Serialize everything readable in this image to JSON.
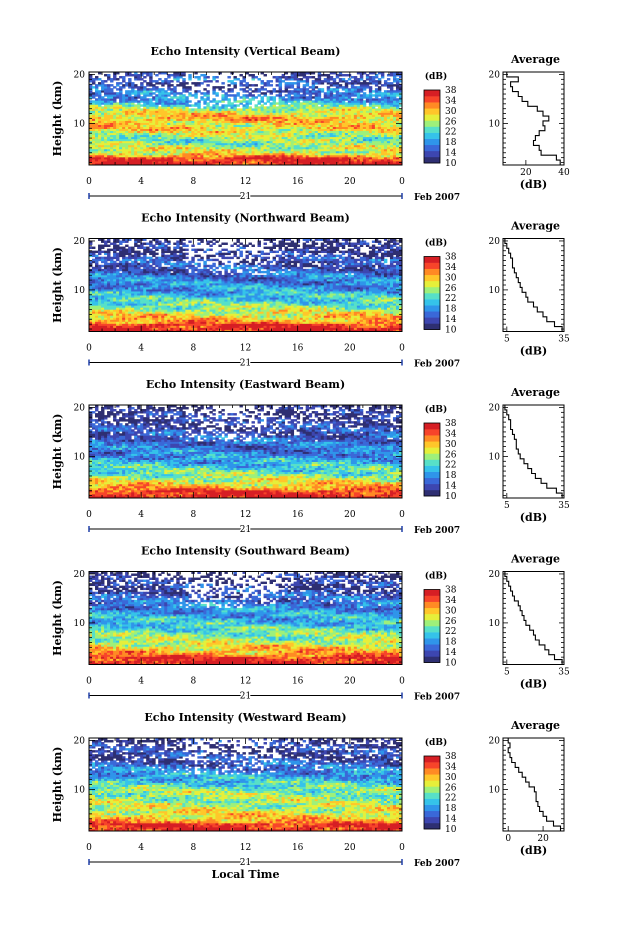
{
  "chart_data": [
    {
      "type": "heatmap",
      "title": "Echo Intensity (Vertical Beam)",
      "xlabel": "",
      "ylabel": "Height (km)",
      "xlim": [
        0,
        24
      ],
      "ylim": [
        1.5,
        20.5
      ],
      "xticks": [
        "0",
        "4",
        "8",
        "12",
        "16",
        "20",
        "0"
      ],
      "yticks": [
        "10",
        "20"
      ],
      "date_marker": "21",
      "date_label": "Feb 2007",
      "colorbar": {
        "unit": "(dB)",
        "ticks": [
          "10",
          "14",
          "18",
          "22",
          "26",
          "30",
          "34",
          "38"
        ],
        "range": [
          10,
          38
        ]
      },
      "profile": {
        "title": "Average",
        "xlabel": "(dB)",
        "xticks": [
          "20",
          "40"
        ],
        "xlim": [
          8,
          40
        ],
        "yticks": [
          "10",
          "20"
        ],
        "heights": [
          2,
          3,
          4,
          5,
          6,
          7,
          8,
          9,
          10,
          11,
          12,
          13,
          14,
          15,
          16,
          17,
          18,
          19,
          20
        ],
        "values": [
          38,
          36,
          28,
          27,
          24,
          25,
          27,
          30,
          29,
          32,
          29,
          26,
          21,
          18,
          16,
          13,
          12,
          16,
          10
        ]
      }
    },
    {
      "type": "heatmap",
      "title": "Echo Intensity (Northward Beam)",
      "xlabel": "",
      "ylabel": "Height (km)",
      "xlim": [
        0,
        24
      ],
      "ylim": [
        1.5,
        20.5
      ],
      "xticks": [
        "0",
        "4",
        "8",
        "12",
        "16",
        "20",
        "0"
      ],
      "yticks": [
        "10",
        "20"
      ],
      "date_marker": "21",
      "date_label": "Feb 2007",
      "colorbar": {
        "unit": "(dB)",
        "ticks": [
          "10",
          "14",
          "18",
          "22",
          "26",
          "30",
          "34",
          "38"
        ],
        "range": [
          10,
          38
        ]
      },
      "profile": {
        "title": "Average",
        "xlabel": "(dB)",
        "xticks": [
          "5",
          "35"
        ],
        "xlim": [
          3,
          35
        ],
        "yticks": [
          "10",
          "20"
        ],
        "heights": [
          2,
          3,
          4,
          5,
          6,
          7,
          8,
          9,
          10,
          11,
          12,
          13,
          14,
          15,
          16,
          17,
          18,
          19,
          20
        ],
        "values": [
          34,
          30,
          26,
          24,
          21,
          19,
          16,
          15,
          13,
          12,
          11,
          10,
          9,
          8,
          8,
          7,
          6,
          5,
          4
        ]
      }
    },
    {
      "type": "heatmap",
      "title": "Echo Intensity (Eastward Beam)",
      "xlabel": "",
      "ylabel": "Height (km)",
      "xlim": [
        0,
        24
      ],
      "ylim": [
        1.5,
        20.5
      ],
      "xticks": [
        "0",
        "4",
        "8",
        "12",
        "16",
        "20",
        "0"
      ],
      "yticks": [
        "10",
        "20"
      ],
      "date_marker": "21",
      "date_label": "Feb 2007",
      "colorbar": {
        "unit": "(dB)",
        "ticks": [
          "10",
          "14",
          "18",
          "22",
          "26",
          "30",
          "34",
          "38"
        ],
        "range": [
          10,
          38
        ]
      },
      "profile": {
        "title": "Average",
        "xlabel": "(dB)",
        "xticks": [
          "5",
          "35"
        ],
        "xlim": [
          3,
          35
        ],
        "yticks": [
          "10",
          "20"
        ],
        "heights": [
          2,
          3,
          4,
          5,
          6,
          7,
          8,
          9,
          10,
          11,
          12,
          13,
          14,
          15,
          16,
          17,
          18,
          19,
          20
        ],
        "values": [
          34,
          31,
          26,
          23,
          20,
          18,
          16,
          14,
          12,
          11,
          10,
          10,
          9,
          8,
          7,
          7,
          6,
          5,
          4
        ]
      }
    },
    {
      "type": "heatmap",
      "title": "Echo Intensity (Southward Beam)",
      "xlabel": "",
      "ylabel": "Height (km)",
      "xlim": [
        0,
        24
      ],
      "ylim": [
        1.5,
        20.5
      ],
      "xticks": [
        "0",
        "4",
        "8",
        "12",
        "16",
        "20",
        "0"
      ],
      "yticks": [
        "10",
        "20"
      ],
      "date_marker": "21",
      "date_label": "Feb 2007",
      "colorbar": {
        "unit": "(dB)",
        "ticks": [
          "10",
          "14",
          "18",
          "22",
          "26",
          "30",
          "34",
          "38"
        ],
        "range": [
          10,
          38
        ]
      },
      "profile": {
        "title": "Average",
        "xlabel": "(dB)",
        "xticks": [
          "5",
          "35"
        ],
        "xlim": [
          3,
          35
        ],
        "yticks": [
          "10",
          "20"
        ],
        "heights": [
          2,
          3,
          4,
          5,
          6,
          7,
          8,
          9,
          10,
          11,
          12,
          13,
          14,
          15,
          16,
          17,
          18,
          19,
          20
        ],
        "values": [
          34,
          30,
          27,
          25,
          22,
          20,
          19,
          17,
          15,
          14,
          13,
          12,
          11,
          9,
          8,
          7,
          6,
          5,
          4
        ]
      }
    },
    {
      "type": "heatmap",
      "title": "Echo Intensity (Westward Beam)",
      "xlabel": "Local Time",
      "ylabel": "Height (km)",
      "xlim": [
        0,
        24
      ],
      "ylim": [
        1.5,
        20.5
      ],
      "xticks": [
        "0",
        "4",
        "8",
        "12",
        "16",
        "20",
        "0"
      ],
      "yticks": [
        "10",
        "20"
      ],
      "date_marker": "21",
      "date_label": "Feb 2007",
      "colorbar": {
        "unit": "(dB)",
        "ticks": [
          "10",
          "14",
          "18",
          "22",
          "26",
          "30",
          "34",
          "38"
        ],
        "range": [
          10,
          38
        ]
      },
      "profile": {
        "title": "Average",
        "xlabel": "(dB)",
        "xticks": [
          "0",
          "20"
        ],
        "xlim": [
          -3,
          32
        ],
        "yticks": [
          "10",
          "20"
        ],
        "heights": [
          2,
          3,
          4,
          5,
          6,
          7,
          8,
          9,
          10,
          11,
          12,
          13,
          14,
          15,
          16,
          17,
          18,
          19,
          20
        ],
        "values": [
          30,
          26,
          22,
          20,
          18,
          17,
          16,
          16,
          15,
          12,
          10,
          8,
          6,
          4,
          2,
          1,
          0,
          1,
          0
        ]
      }
    }
  ],
  "colormap": [
    "#2e2f72",
    "#3d46b0",
    "#3a68d8",
    "#2f95ea",
    "#35c3ea",
    "#57e0c8",
    "#9ef07a",
    "#e6ef3a",
    "#ffc62a",
    "#ff8a24",
    "#f7442a",
    "#d61e24"
  ]
}
